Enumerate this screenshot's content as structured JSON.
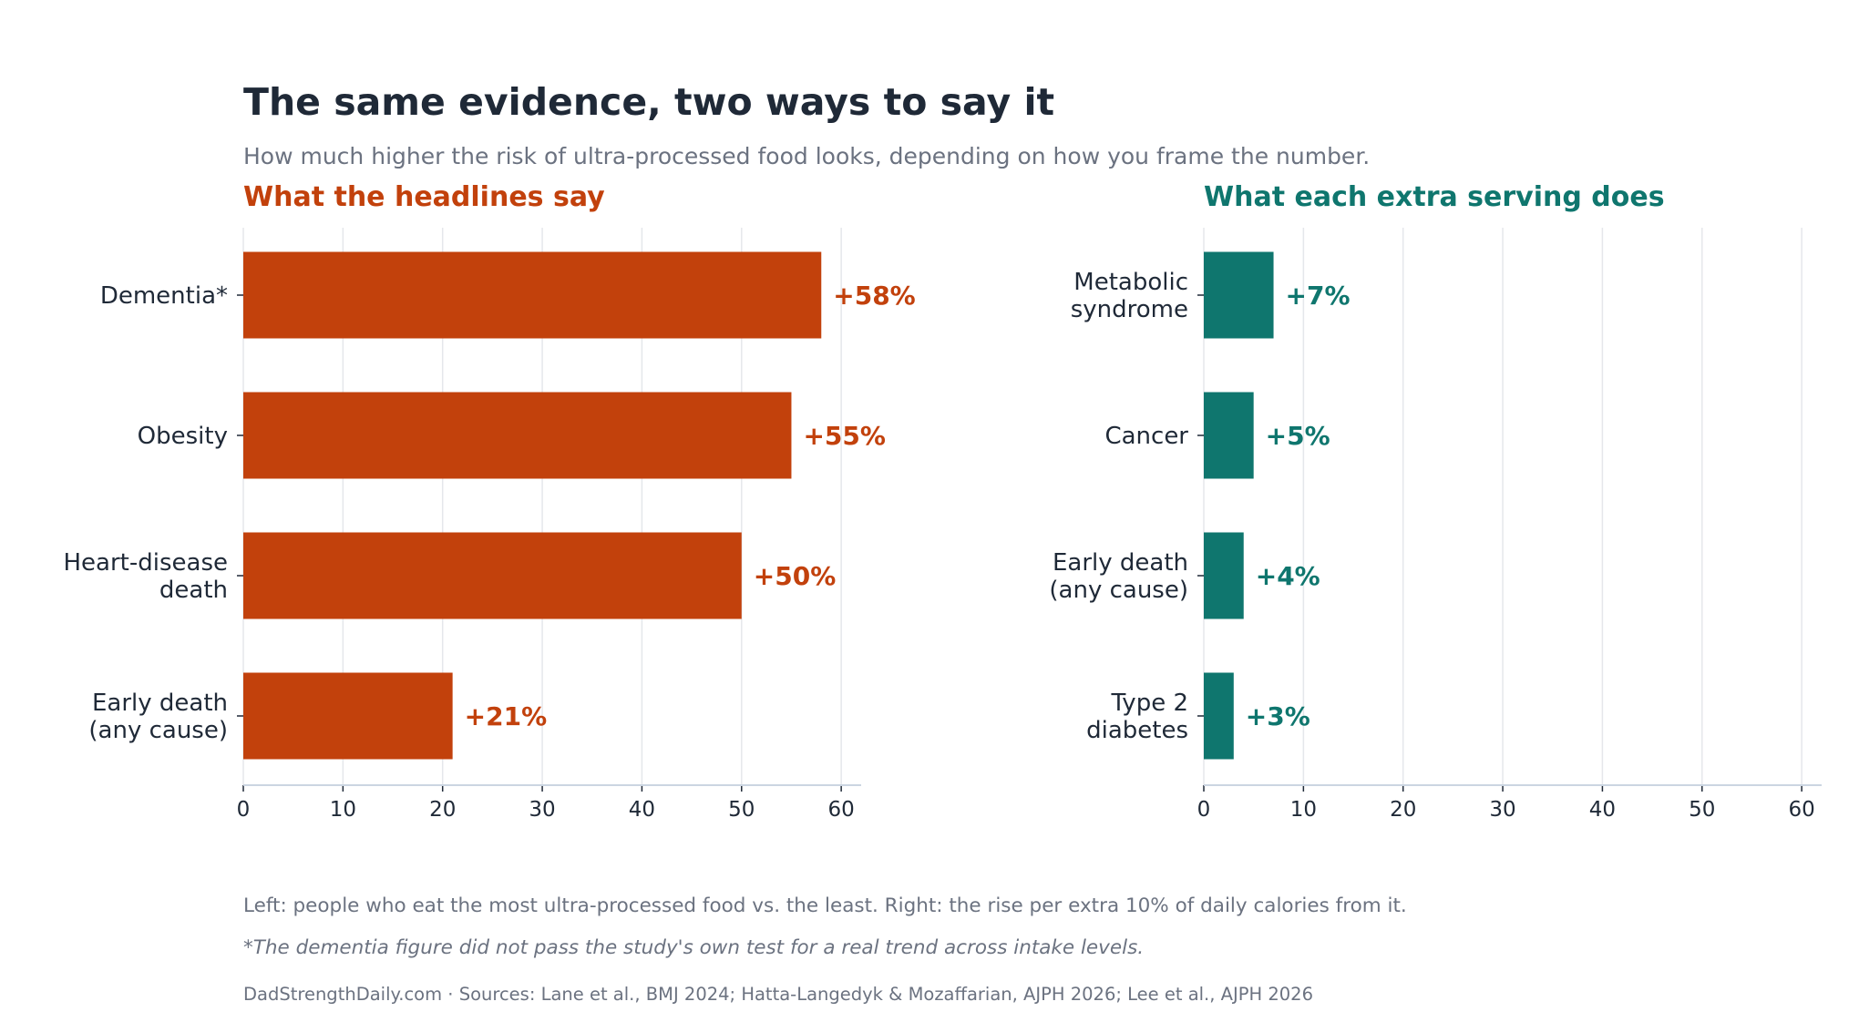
{
  "title": "The same evidence, two ways to say it",
  "subtitle": "How much higher the risk of ultra-processed food looks, depending on how you frame the number.",
  "colors": {
    "left": "#c2410c",
    "right": "#0f766e",
    "text": "#1f2937",
    "muted": "#6b7280",
    "grid": "#e5e7eb",
    "axis": "#cbd5e1"
  },
  "chart_data": [
    {
      "type": "bar",
      "orientation": "horizontal",
      "title": "What the headlines say",
      "categories": [
        "Dementia*",
        "Obesity",
        "Heart-disease\ndeath",
        "Early death\n(any cause)"
      ],
      "values": [
        58,
        55,
        50,
        21
      ],
      "data_labels": [
        "+58%",
        "+55%",
        "+50%",
        "+21%"
      ],
      "xlim": [
        0,
        62
      ],
      "xticks": [
        0,
        10,
        20,
        30,
        40,
        50,
        60
      ],
      "grid": true,
      "color": "#c2410c"
    },
    {
      "type": "bar",
      "orientation": "horizontal",
      "title": "What each extra serving does",
      "categories": [
        "Metabolic\nsyndrome",
        "Cancer",
        "Early death\n(any cause)",
        "Type 2\ndiabetes"
      ],
      "values": [
        7,
        5,
        4,
        3
      ],
      "data_labels": [
        "+7%",
        "+5%",
        "+4%",
        "+3%"
      ],
      "xlim": [
        0,
        62
      ],
      "xticks": [
        0,
        10,
        20,
        30,
        40,
        50,
        60
      ],
      "grid": true,
      "color": "#0f766e"
    }
  ],
  "footnotes": {
    "explain": "Left: people who eat the most ultra-processed food vs. the least.   Right: the rise per extra 10% of daily calories from it.",
    "dementia_note": "*The dementia figure did not pass the study's own test for a real trend across intake levels.",
    "sources": "DadStrengthDaily.com  ·  Sources: Lane et al., BMJ 2024; Hatta-Langedyk & Mozaffarian, AJPH 2026; Lee et al., AJPH 2026"
  }
}
